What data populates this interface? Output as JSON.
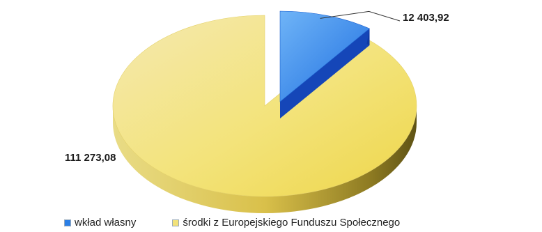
{
  "chart_data": {
    "type": "pie",
    "title": "",
    "slices": [
      {
        "name": "wkład własny",
        "value": 12403.92,
        "label": "12 403,92",
        "color": "#2b7fe6"
      },
      {
        "name": "środki z Europejskiego Funduszu Społecznego",
        "value": 111273.08,
        "label": "111 273,08",
        "color": "#f2e27a"
      }
    ],
    "exploded_slice": "wkład własny",
    "style": "3d",
    "legend_position": "bottom"
  }
}
